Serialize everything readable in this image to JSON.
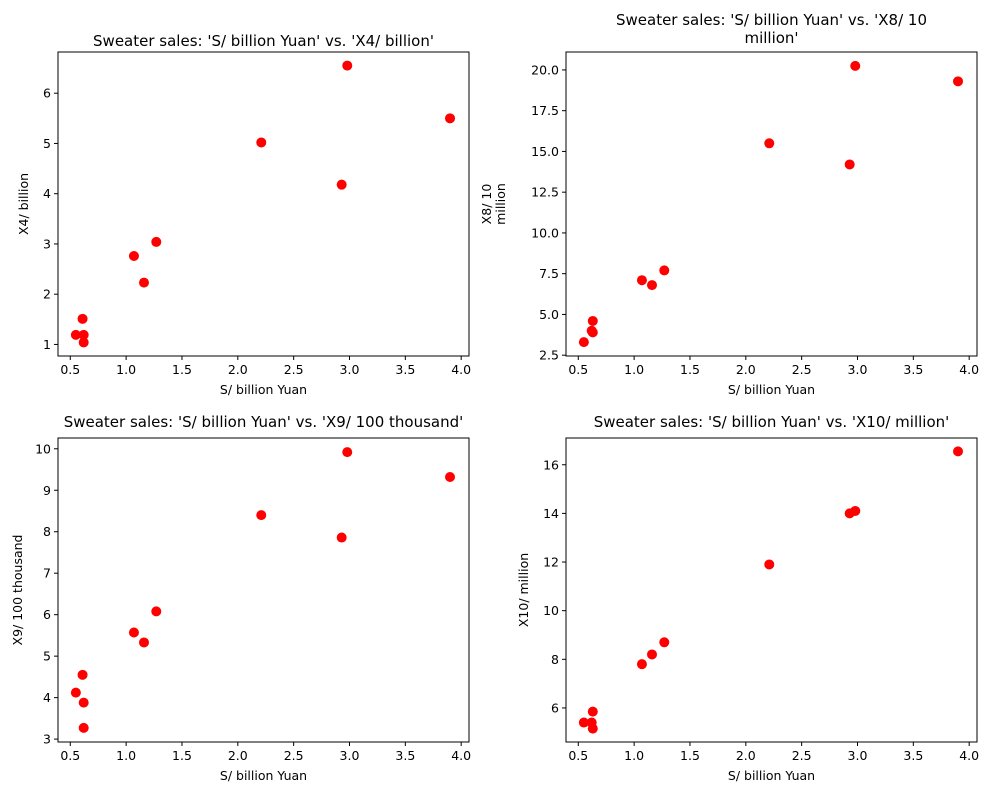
{
  "chart_data": [
    {
      "type": "scatter",
      "title": [
        "Sweater sales: 'S/ billion Yuan' vs. 'X4/ billion'"
      ],
      "xlabel": [
        "S/ billion Yuan"
      ],
      "ylabel": [
        "X4/ billion"
      ],
      "xlim": [
        0.39,
        4.07
      ],
      "ylim": [
        0.77,
        6.82
      ],
      "xticks": [
        0.5,
        1.0,
        1.5,
        2.0,
        2.5,
        3.0,
        3.5,
        4.0
      ],
      "xtick_labels": [
        "0.5",
        "1.0",
        "1.5",
        "2.0",
        "2.5",
        "3.0",
        "3.5",
        "4.0"
      ],
      "yticks": [
        1,
        2,
        3,
        4,
        5,
        6
      ],
      "ytick_labels": [
        "1",
        "2",
        "3",
        "4",
        "5",
        "6"
      ],
      "color": "#ff0000",
      "x": [
        0.55,
        0.61,
        0.62,
        0.62,
        1.07,
        1.16,
        1.27,
        2.21,
        2.93,
        2.98,
        3.9
      ],
      "y": [
        1.19,
        1.51,
        1.19,
        1.04,
        2.76,
        2.23,
        3.04,
        5.02,
        4.18,
        6.55,
        5.5
      ]
    },
    {
      "type": "scatter",
      "title": [
        "Sweater sales: 'S/ billion Yuan' vs. 'X8/ 10",
        "million'"
      ],
      "xlabel": [
        "S/ billion Yuan"
      ],
      "ylabel": [
        "X8/ 10",
        "million"
      ],
      "xlim": [
        0.39,
        4.07
      ],
      "ylim": [
        2.45,
        21.1
      ],
      "xticks": [
        0.5,
        1.0,
        1.5,
        2.0,
        2.5,
        3.0,
        3.5,
        4.0
      ],
      "xtick_labels": [
        "0.5",
        "1.0",
        "1.5",
        "2.0",
        "2.5",
        "3.0",
        "3.5",
        "4.0"
      ],
      "yticks": [
        2.5,
        5.0,
        7.5,
        10.0,
        12.5,
        15.0,
        17.5,
        20.0
      ],
      "ytick_labels": [
        "2.5",
        "5.0",
        "7.5",
        "10.0",
        "12.5",
        "15.0",
        "17.5",
        "20.0"
      ],
      "color": "#ff0000",
      "x": [
        0.55,
        0.62,
        0.63,
        0.63,
        1.07,
        1.16,
        1.27,
        2.21,
        2.93,
        2.98,
        3.9
      ],
      "y": [
        3.3,
        4.0,
        4.6,
        3.9,
        7.1,
        6.8,
        7.7,
        15.5,
        14.2,
        20.25,
        19.3
      ]
    },
    {
      "type": "scatter",
      "title": [
        "Sweater sales: 'S/ billion Yuan' vs. 'X9/ 100 thousand'"
      ],
      "xlabel": [
        "S/ billion Yuan"
      ],
      "ylabel": [
        "X9/ 100 thousand"
      ],
      "xlim": [
        0.39,
        4.07
      ],
      "ylim": [
        2.93,
        10.26
      ],
      "xticks": [
        0.5,
        1.0,
        1.5,
        2.0,
        2.5,
        3.0,
        3.5,
        4.0
      ],
      "xtick_labels": [
        "0.5",
        "1.0",
        "1.5",
        "2.0",
        "2.5",
        "3.0",
        "3.5",
        "4.0"
      ],
      "yticks": [
        3,
        4,
        5,
        6,
        7,
        8,
        9,
        10
      ],
      "ytick_labels": [
        "3",
        "4",
        "5",
        "6",
        "7",
        "8",
        "9",
        "10"
      ],
      "color": "#ff0000",
      "x": [
        0.55,
        0.61,
        0.62,
        0.62,
        1.07,
        1.16,
        1.27,
        2.21,
        2.93,
        2.98,
        3.9
      ],
      "y": [
        4.12,
        4.55,
        3.88,
        3.27,
        5.57,
        5.33,
        6.08,
        8.4,
        7.86,
        9.92,
        9.32
      ]
    },
    {
      "type": "scatter",
      "title": [
        "Sweater sales: 'S/ billion Yuan' vs. 'X10/ million'"
      ],
      "xlabel": [
        "S/ billion Yuan"
      ],
      "ylabel": [
        "X10/ million"
      ],
      "xlim": [
        0.39,
        4.07
      ],
      "ylim": [
        4.6,
        17.1
      ],
      "xticks": [
        0.5,
        1.0,
        1.5,
        2.0,
        2.5,
        3.0,
        3.5,
        4.0
      ],
      "xtick_labels": [
        "0.5",
        "1.0",
        "1.5",
        "2.0",
        "2.5",
        "3.0",
        "3.5",
        "4.0"
      ],
      "yticks": [
        6,
        8,
        10,
        12,
        14,
        16
      ],
      "ytick_labels": [
        "6",
        "8",
        "10",
        "12",
        "14",
        "16"
      ],
      "color": "#ff0000",
      "x": [
        0.55,
        0.62,
        0.63,
        0.63,
        1.07,
        1.16,
        1.27,
        2.21,
        2.93,
        2.98,
        3.9
      ],
      "y": [
        5.4,
        5.4,
        5.85,
        5.15,
        7.8,
        8.2,
        8.7,
        11.9,
        14.0,
        14.1,
        16.55
      ]
    }
  ]
}
